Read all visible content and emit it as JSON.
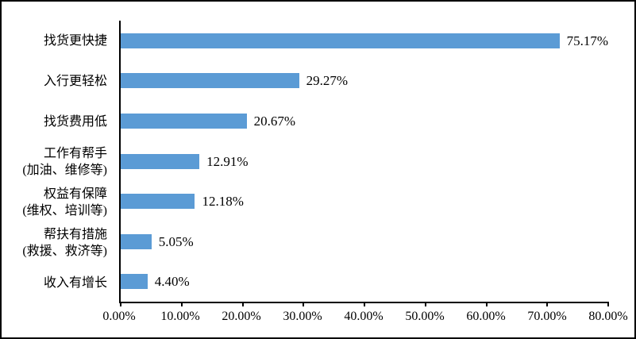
{
  "chart_data": {
    "type": "bar",
    "orientation": "horizontal",
    "title": "",
    "xlabel": "",
    "ylabel": "",
    "xlim": [
      0,
      80
    ],
    "grid": false,
    "legend": false,
    "bar_color": "#5B9BD5",
    "axis_color": "#000000",
    "categories": [
      "找货更快捷",
      "入行更轻松",
      "找货费用低",
      "工作有帮手\n(加油、维修等)",
      "权益有保障\n(维权、培训等)",
      "帮扶有措施\n(救援、救济等)",
      "收入有增长"
    ],
    "values": [
      75.17,
      29.27,
      20.67,
      12.91,
      12.18,
      5.05,
      4.4
    ],
    "value_labels": [
      "75.17%",
      "29.27%",
      "20.67%",
      "12.91%",
      "12.18%",
      "5.05%",
      "4.40%"
    ],
    "x_ticks": [
      "0.00%",
      "10.00%",
      "20.00%",
      "30.00%",
      "40.00%",
      "50.00%",
      "60.00%",
      "70.00%",
      "80.00%"
    ],
    "x_tick_values": [
      0,
      10,
      20,
      30,
      40,
      50,
      60,
      70,
      80
    ]
  }
}
